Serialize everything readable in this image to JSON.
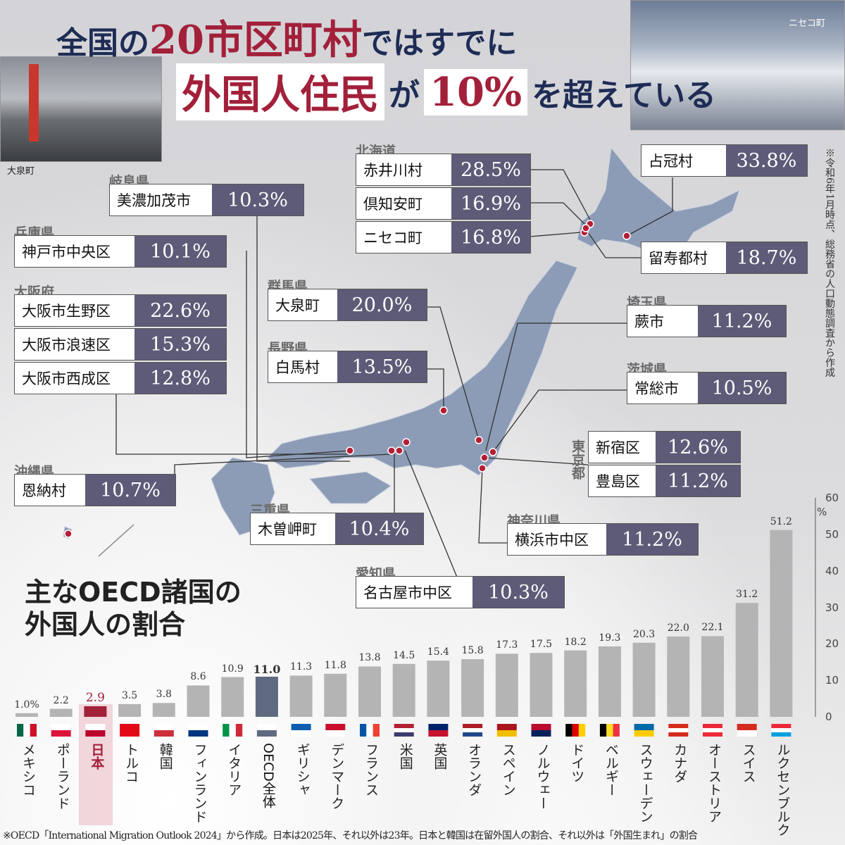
{
  "title": {
    "line1_pre": "全国の",
    "line1_red": "20市区町村",
    "line1_post": "ではすでに",
    "line2_box1": "外国人住民",
    "line2_mid": "が",
    "line2_box2": "10%",
    "line2_post": "を超えている"
  },
  "photos": {
    "left_caption": "大泉町",
    "right_caption": "ニセコ町"
  },
  "note": "※令和6年1月時点、総務省の人口動態調査から作成",
  "map_labels": [
    {
      "pref": "岐阜県",
      "items": [
        {
          "name": "美濃加茂市",
          "pct": "10.3%"
        }
      ]
    },
    {
      "pref": "兵庫県",
      "items": [
        {
          "name": "神戸市中央区",
          "pct": "10.1%"
        }
      ]
    },
    {
      "pref": "大阪府",
      "items": [
        {
          "name": "大阪市生野区",
          "pct": "22.6%"
        },
        {
          "name": "大阪市浪速区",
          "pct": "15.3%"
        },
        {
          "name": "大阪市西成区",
          "pct": "12.8%"
        }
      ]
    },
    {
      "pref": "沖縄県",
      "items": [
        {
          "name": "恩納村",
          "pct": "10.7%"
        }
      ]
    },
    {
      "pref": "北海道",
      "items": [
        {
          "name": "赤井川村",
          "pct": "28.5%"
        },
        {
          "name": "倶知安町",
          "pct": "16.9%"
        },
        {
          "name": "ニセコ町",
          "pct": "16.8%"
        }
      ]
    },
    {
      "pref": "",
      "items": [
        {
          "name": "占冠村",
          "pct": "33.8%"
        }
      ]
    },
    {
      "pref": "",
      "items": [
        {
          "name": "留寿都村",
          "pct": "18.7%"
        }
      ]
    },
    {
      "pref": "群馬県",
      "items": [
        {
          "name": "大泉町",
          "pct": "20.0%"
        }
      ]
    },
    {
      "pref": "長野県",
      "items": [
        {
          "name": "白馬村",
          "pct": "13.5%"
        }
      ]
    },
    {
      "pref": "埼玉県",
      "items": [
        {
          "name": "蕨市",
          "pct": "11.2%"
        }
      ]
    },
    {
      "pref": "茨城県",
      "items": [
        {
          "name": "常総市",
          "pct": "10.5%"
        }
      ]
    },
    {
      "pref": "東京都",
      "items": [
        {
          "name": "新宿区",
          "pct": "12.6%"
        },
        {
          "name": "豊島区",
          "pct": "11.2%"
        }
      ]
    },
    {
      "pref": "三重県",
      "items": [
        {
          "name": "木曽岬町",
          "pct": "10.4%"
        }
      ]
    },
    {
      "pref": "神奈川県",
      "items": [
        {
          "name": "横浜市中区",
          "pct": "11.2%"
        }
      ]
    },
    {
      "pref": "愛知県",
      "items": [
        {
          "name": "名古屋市中区",
          "pct": "10.3%"
        }
      ]
    }
  ],
  "chart_data": {
    "type": "bar",
    "title": "主なOECD諸国の外国人の割合",
    "title_line1": "主なOECD諸国の",
    "title_line2": "外国人の割合",
    "ylabel": "%",
    "ylim": [
      0,
      60
    ],
    "yticks": [
      "0",
      "10",
      "20",
      "30",
      "40",
      "50",
      "60"
    ],
    "categories": [
      "メキシコ",
      "ポーランド",
      "日本",
      "トルコ",
      "韓国",
      "フィンランド",
      "イタリア",
      "OECD全体",
      "ギリシャ",
      "デンマーク",
      "フランス",
      "米国",
      "英国",
      "オランダ",
      "スペイン",
      "ノルウェー",
      "ドイツ",
      "ベルギー",
      "スウェーデン",
      "カナダ",
      "オーストリア",
      "スイス",
      "ルクセンブルク"
    ],
    "values": [
      1.0,
      2.2,
      2.9,
      3.5,
      3.8,
      8.6,
      10.9,
      11.0,
      11.3,
      11.8,
      13.8,
      14.5,
      15.4,
      15.8,
      17.3,
      17.5,
      18.2,
      19.3,
      20.3,
      22.0,
      22.1,
      31.2,
      51.2
    ],
    "value_labels": [
      "1.0%",
      "2.2",
      "2.9",
      "3.5",
      "3.8",
      "8.6",
      "10.9",
      "11.0",
      "11.3",
      "11.8",
      "13.8",
      "14.5",
      "15.4",
      "15.8",
      "17.3",
      "17.5",
      "18.2",
      "19.3",
      "20.3",
      "22.0",
      "22.1",
      "31.2",
      "51.2"
    ],
    "colors": {
      "default": "#b4b4b4",
      "japan": "#a3203a",
      "oecd": "#5f6a80",
      "highlight_bg": "#f1d6dc"
    },
    "footnote": "※OECD「International Migration Outlook 2024」から作成。日本は2025年、それ以外は23年。日本と韓国は在留外国人の割合、それ以外は「外国生まれ」の割合"
  }
}
